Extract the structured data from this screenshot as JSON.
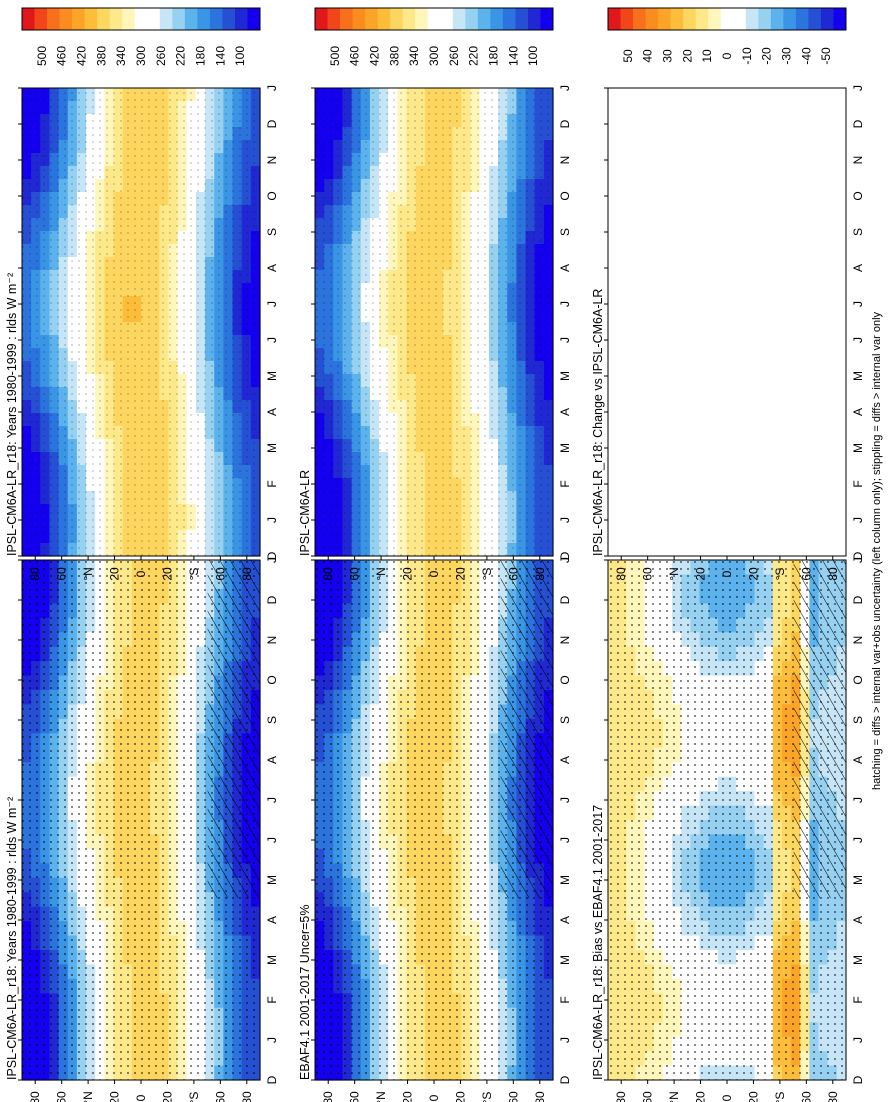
{
  "footnote": "hatching = diffs > internal var+obs uncertainty (left column only); stippling = diffs > internal var only",
  "month_labels": [
    "D",
    "J",
    "F",
    "M",
    "A",
    "M",
    "J",
    "J",
    "A",
    "S",
    "O",
    "N",
    "D",
    "J"
  ],
  "lat_labels": [
    "80",
    "60",
    "°N",
    "20",
    "0",
    "20",
    "°S",
    "60",
    "80"
  ],
  "colors": {
    "abs": [
      "#e0181c",
      "#f0461a",
      "#f7701c",
      "#fb8c1f",
      "#fba428",
      "#fcbe3a",
      "#fdd660",
      "#fee98a",
      "#fff6bb",
      "#ffffff",
      "#ffffff",
      "#c6e6f7",
      "#96d1f1",
      "#5cb2ec",
      "#3a95e4",
      "#2c74dd",
      "#2650d4",
      "#2028d4",
      "#1400ee"
    ],
    "diff": [
      "#e0181c",
      "#f0461a",
      "#f7701c",
      "#fb8c1f",
      "#fba428",
      "#fcbe3a",
      "#fdd660",
      "#fee98a",
      "#fff6bb",
      "#ffffff",
      "#ffffff",
      "#c6e6f7",
      "#96d1f1",
      "#5cb2ec",
      "#3a95e4",
      "#2c74dd",
      "#2650d4",
      "#2028d4",
      "#1400ee"
    ]
  },
  "chart_data": [
    {
      "type": "heatmap",
      "title": "IPSL-CM6A-LR_r18: Years 1980-1999 : rlds W m⁻²",
      "variable": "rlds",
      "units": "W m^-2",
      "x": [
        "D",
        "J",
        "F",
        "M",
        "A",
        "M",
        "J",
        "J",
        "A",
        "S",
        "O",
        "N",
        "D",
        "J"
      ],
      "y": [
        "80",
        "60",
        "°N",
        "20",
        "0",
        "20",
        "°S",
        "60",
        "80"
      ],
      "colorbar_ticks": [
        "500",
        "460",
        "420",
        "380",
        "340",
        "300",
        "260",
        "220",
        "180",
        "140",
        "100"
      ],
      "hatching": true,
      "stippling": true
    },
    {
      "type": "heatmap",
      "title": "IPSL-CM6A-LR_r18: Years 1980-1999 : rlds W m⁻²",
      "variable": "rlds",
      "units": "W m^-2",
      "x": [
        "D",
        "J",
        "F",
        "M",
        "A",
        "M",
        "J",
        "J",
        "A",
        "S",
        "O",
        "N",
        "D",
        "J"
      ],
      "y": [
        "80",
        "60",
        "°N",
        "20",
        "0",
        "20",
        "°S",
        "60",
        "80"
      ],
      "colorbar_ticks": [
        "500",
        "460",
        "420",
        "380",
        "340",
        "300",
        "260",
        "220",
        "180",
        "140",
        "100"
      ],
      "hatching": false,
      "stippling": true
    },
    {
      "type": "heatmap",
      "title": "EBAF4.1 2001-2017 Uncer=5%",
      "variable": "rlds",
      "units": "W m^-2",
      "x": [
        "D",
        "J",
        "F",
        "M",
        "A",
        "M",
        "J",
        "J",
        "A",
        "S",
        "O",
        "N",
        "D",
        "J"
      ],
      "y": [
        "80",
        "60",
        "°N",
        "20",
        "0",
        "20",
        "°S",
        "60",
        "80"
      ],
      "colorbar_ticks": [
        "500",
        "460",
        "420",
        "380",
        "340",
        "300",
        "260",
        "220",
        "180",
        "140",
        "100"
      ],
      "hatching": true,
      "stippling": true
    },
    {
      "type": "heatmap",
      "title": "IPSL-CM6A-LR",
      "variable": "rlds",
      "units": "W m^-2",
      "x": [
        "D",
        "J",
        "F",
        "M",
        "A",
        "M",
        "J",
        "J",
        "A",
        "S",
        "O",
        "N",
        "D",
        "J"
      ],
      "y": [
        "80",
        "60",
        "°N",
        "20",
        "0",
        "20",
        "°S",
        "60",
        "80"
      ],
      "colorbar_ticks": [
        "500",
        "460",
        "420",
        "380",
        "340",
        "300",
        "260",
        "220",
        "180",
        "140",
        "100"
      ],
      "hatching": false,
      "stippling": true
    },
    {
      "type": "heatmap",
      "title": "IPSL-CM6A-LR_r18: Bias vs EBAF4.1 2001-2017",
      "variable": "rlds bias",
      "units": "W m^-2",
      "x": [
        "D",
        "J",
        "F",
        "M",
        "A",
        "M",
        "J",
        "J",
        "A",
        "S",
        "O",
        "N",
        "D",
        "J"
      ],
      "y": [
        "80",
        "60",
        "°N",
        "20",
        "0",
        "20",
        "°S",
        "60",
        "80"
      ],
      "colorbar_ticks": [
        "50",
        "40",
        "30",
        "20",
        "10",
        "0",
        "-10",
        "-20",
        "-30",
        "-40",
        "-50"
      ],
      "hatching": true,
      "stippling": true
    },
    {
      "type": "heatmap",
      "title": "IPSL-CM6A-LR_r18: Change vs IPSL-CM6A-LR",
      "variable": "rlds change",
      "units": "W m^-2",
      "x": [
        "D",
        "J",
        "F",
        "M",
        "A",
        "M",
        "J",
        "J",
        "A",
        "S",
        "O",
        "N",
        "D",
        "J"
      ],
      "y": [
        "80",
        "60",
        "°N",
        "20",
        "0",
        "20",
        "°S",
        "60",
        "80"
      ],
      "colorbar_ticks": [
        "50",
        "40",
        "30",
        "20",
        "10",
        "0",
        "-10",
        "-20",
        "-30",
        "-40",
        "-50"
      ],
      "hatching": false,
      "stippling": true
    }
  ]
}
